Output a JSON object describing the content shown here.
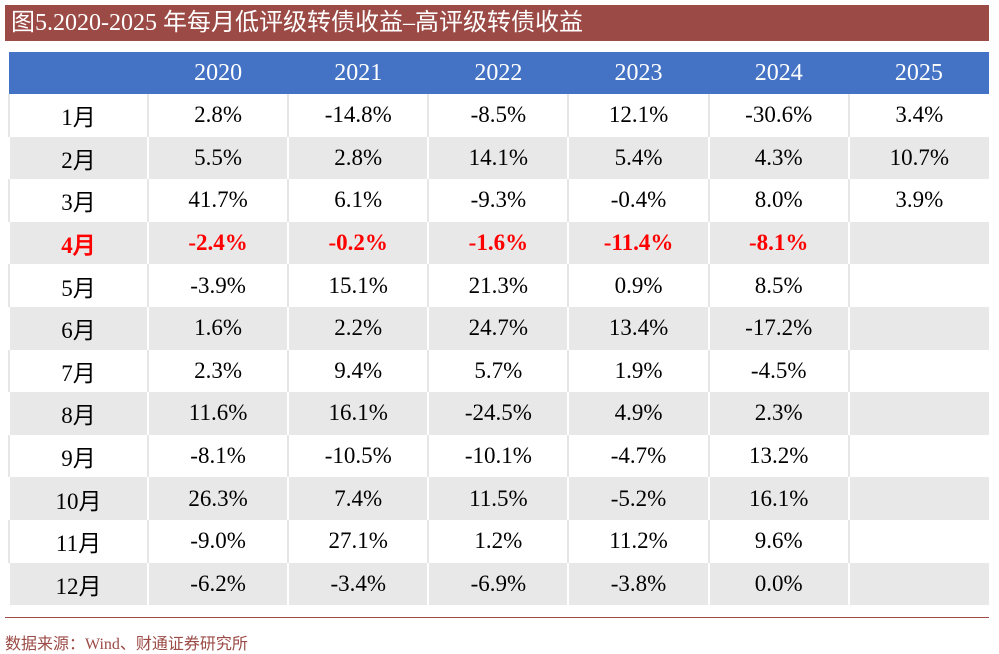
{
  "title": "图5.2020-2025 年每月低评级转债收益–高评级转债收益",
  "colors": {
    "title_bar": "#9B4A45",
    "header": "#4472C4",
    "highlight_text": "#FF0000",
    "stripe": "#E8E8E8"
  },
  "chart_data": {
    "type": "table",
    "columns": [
      "",
      "2020",
      "2021",
      "2022",
      "2023",
      "2024",
      "2025"
    ],
    "highlight_row": "4月",
    "rows": [
      [
        "1月",
        "2.8%",
        "-14.8%",
        "-8.5%",
        "12.1%",
        "-30.6%",
        "3.4%"
      ],
      [
        "2月",
        "5.5%",
        "2.8%",
        "14.1%",
        "5.4%",
        "4.3%",
        "10.7%"
      ],
      [
        "3月",
        "41.7%",
        "6.1%",
        "-9.3%",
        "-0.4%",
        "8.0%",
        "3.9%"
      ],
      [
        "4月",
        "-2.4%",
        "-0.2%",
        "-1.6%",
        "-11.4%",
        "-8.1%",
        ""
      ],
      [
        "5月",
        "-3.9%",
        "15.1%",
        "21.3%",
        "0.9%",
        "8.5%",
        ""
      ],
      [
        "6月",
        "1.6%",
        "2.2%",
        "24.7%",
        "13.4%",
        "-17.2%",
        ""
      ],
      [
        "7月",
        "2.3%",
        "9.4%",
        "5.7%",
        "1.9%",
        "-4.5%",
        ""
      ],
      [
        "8月",
        "11.6%",
        "16.1%",
        "-24.5%",
        "4.9%",
        "2.3%",
        ""
      ],
      [
        "9月",
        "-8.1%",
        "-10.5%",
        "-10.1%",
        "-4.7%",
        "13.2%",
        ""
      ],
      [
        "10月",
        "26.3%",
        "7.4%",
        "11.5%",
        "-5.2%",
        "16.1%",
        ""
      ],
      [
        "11月",
        "-9.0%",
        "27.1%",
        "1.2%",
        "11.2%",
        "9.6%",
        ""
      ],
      [
        "12月",
        "-6.2%",
        "-3.4%",
        "-6.9%",
        "-3.8%",
        "0.0%",
        ""
      ]
    ]
  },
  "source": "数据来源：Wind、财通证券研究所"
}
